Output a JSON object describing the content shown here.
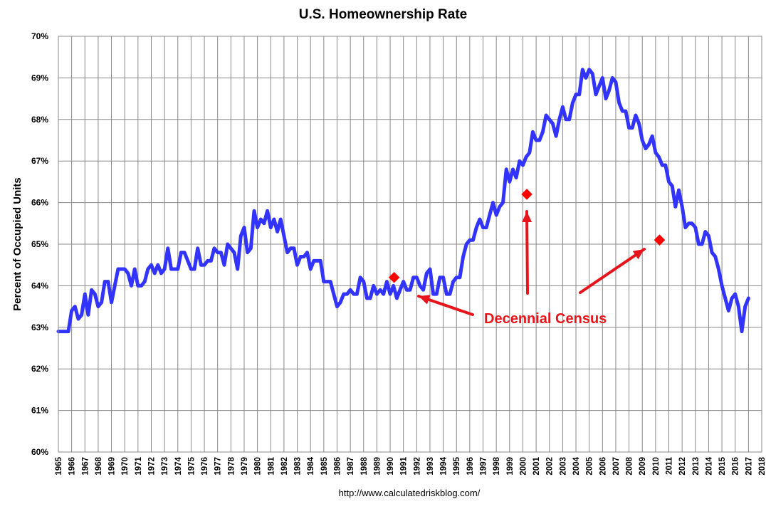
{
  "chart_data": {
    "type": "line",
    "title": "U.S. Homeownership Rate",
    "ylabel": "Percent of Occupied Units",
    "xlabel": "",
    "source": "http://www.calculatedriskblog.com/",
    "ylim": [
      60,
      70
    ],
    "xlim": [
      1965,
      2018
    ],
    "ytick_labels": [
      "60%",
      "61%",
      "62%",
      "63%",
      "64%",
      "65%",
      "66%",
      "67%",
      "68%",
      "69%",
      "70%"
    ],
    "xtick_labels": [
      "1965",
      "1966",
      "1967",
      "1968",
      "1969",
      "1970",
      "1971",
      "1972",
      "1973",
      "1974",
      "1975",
      "1976",
      "1977",
      "1978",
      "1979",
      "1980",
      "1981",
      "1982",
      "1983",
      "1984",
      "1985",
      "1986",
      "1987",
      "1988",
      "1989",
      "1990",
      "1991",
      "1992",
      "1993",
      "1994",
      "1995",
      "1996",
      "1997",
      "1998",
      "1999",
      "2000",
      "2001",
      "2002",
      "2003",
      "2004",
      "2005",
      "2006",
      "2007",
      "2008",
      "2009",
      "2010",
      "2011",
      "2012",
      "2013",
      "2014",
      "2015",
      "2016",
      "2017",
      "2018"
    ],
    "grid": true,
    "colors": {
      "series": "#3333ff",
      "census": "#ff0000",
      "annotation": "#e8141b",
      "grid": "#888888"
    },
    "series": [
      {
        "values": [
          [
            1965.0,
            62.9
          ],
          [
            1965.75,
            62.9
          ],
          [
            1966.0,
            63.4
          ],
          [
            1966.25,
            63.5
          ],
          [
            1966.5,
            63.2
          ],
          [
            1966.75,
            63.3
          ],
          [
            1967.0,
            63.8
          ],
          [
            1967.25,
            63.3
          ],
          [
            1967.5,
            63.9
          ],
          [
            1967.75,
            63.8
          ],
          [
            1968.0,
            63.5
          ],
          [
            1968.25,
            63.6
          ],
          [
            1968.5,
            64.1
          ],
          [
            1968.75,
            64.1
          ],
          [
            1969.0,
            63.6
          ],
          [
            1969.25,
            64.0
          ],
          [
            1969.5,
            64.4
          ],
          [
            1969.75,
            64.4
          ],
          [
            1970.0,
            64.4
          ],
          [
            1970.25,
            64.3
          ],
          [
            1970.5,
            64.0
          ],
          [
            1970.75,
            64.4
          ],
          [
            1971.0,
            64.0
          ],
          [
            1971.25,
            64.0
          ],
          [
            1971.5,
            64.1
          ],
          [
            1971.75,
            64.4
          ],
          [
            1972.0,
            64.5
          ],
          [
            1972.25,
            64.3
          ],
          [
            1972.5,
            64.5
          ],
          [
            1972.75,
            64.3
          ],
          [
            1973.0,
            64.4
          ],
          [
            1973.25,
            64.9
          ],
          [
            1973.5,
            64.4
          ],
          [
            1973.75,
            64.4
          ],
          [
            1974.0,
            64.4
          ],
          [
            1974.25,
            64.8
          ],
          [
            1974.5,
            64.8
          ],
          [
            1974.75,
            64.6
          ],
          [
            1975.0,
            64.4
          ],
          [
            1975.25,
            64.4
          ],
          [
            1975.5,
            64.9
          ],
          [
            1975.75,
            64.5
          ],
          [
            1976.0,
            64.5
          ],
          [
            1976.25,
            64.6
          ],
          [
            1976.5,
            64.6
          ],
          [
            1976.75,
            64.9
          ],
          [
            1977.0,
            64.8
          ],
          [
            1977.25,
            64.8
          ],
          [
            1977.5,
            64.5
          ],
          [
            1977.75,
            65.0
          ],
          [
            1978.0,
            64.9
          ],
          [
            1978.25,
            64.8
          ],
          [
            1978.5,
            64.4
          ],
          [
            1978.75,
            65.2
          ],
          [
            1979.0,
            65.4
          ],
          [
            1979.25,
            64.8
          ],
          [
            1979.5,
            64.9
          ],
          [
            1979.75,
            65.8
          ],
          [
            1980.0,
            65.4
          ],
          [
            1980.25,
            65.6
          ],
          [
            1980.5,
            65.5
          ],
          [
            1980.75,
            65.8
          ],
          [
            1981.0,
            65.4
          ],
          [
            1981.25,
            65.6
          ],
          [
            1981.5,
            65.3
          ],
          [
            1981.75,
            65.6
          ],
          [
            1982.0,
            65.2
          ],
          [
            1982.25,
            64.8
          ],
          [
            1982.5,
            64.9
          ],
          [
            1982.75,
            64.9
          ],
          [
            1983.0,
            64.5
          ],
          [
            1983.25,
            64.7
          ],
          [
            1983.5,
            64.7
          ],
          [
            1983.75,
            64.8
          ],
          [
            1984.0,
            64.4
          ],
          [
            1984.25,
            64.6
          ],
          [
            1984.5,
            64.6
          ],
          [
            1984.75,
            64.6
          ],
          [
            1985.0,
            64.1
          ],
          [
            1985.25,
            64.1
          ],
          [
            1985.5,
            64.1
          ],
          [
            1985.75,
            63.8
          ],
          [
            1986.0,
            63.5
          ],
          [
            1986.25,
            63.6
          ],
          [
            1986.5,
            63.8
          ],
          [
            1986.75,
            63.8
          ],
          [
            1987.0,
            63.9
          ],
          [
            1987.25,
            63.8
          ],
          [
            1987.5,
            63.8
          ],
          [
            1987.75,
            64.2
          ],
          [
            1988.0,
            64.1
          ],
          [
            1988.25,
            63.7
          ],
          [
            1988.5,
            63.7
          ],
          [
            1988.75,
            64.0
          ],
          [
            1989.0,
            63.8
          ],
          [
            1989.25,
            63.9
          ],
          [
            1989.5,
            63.8
          ],
          [
            1989.75,
            64.1
          ],
          [
            1990.0,
            63.8
          ],
          [
            1990.25,
            64.0
          ],
          [
            1990.5,
            63.7
          ],
          [
            1990.75,
            63.9
          ],
          [
            1991.0,
            64.1
          ],
          [
            1991.25,
            63.9
          ],
          [
            1991.5,
            63.9
          ],
          [
            1991.75,
            64.2
          ],
          [
            1992.0,
            64.2
          ],
          [
            1992.25,
            64.0
          ],
          [
            1992.5,
            63.9
          ],
          [
            1992.75,
            64.3
          ],
          [
            1993.0,
            64.4
          ],
          [
            1993.25,
            63.8
          ],
          [
            1993.5,
            63.8
          ],
          [
            1993.75,
            64.2
          ],
          [
            1994.0,
            64.2
          ],
          [
            1994.25,
            63.8
          ],
          [
            1994.5,
            63.8
          ],
          [
            1994.75,
            64.1
          ],
          [
            1995.0,
            64.2
          ],
          [
            1995.25,
            64.2
          ],
          [
            1995.5,
            64.7
          ],
          [
            1995.75,
            65.0
          ],
          [
            1996.0,
            65.1
          ],
          [
            1996.25,
            65.1
          ],
          [
            1996.5,
            65.4
          ],
          [
            1996.75,
            65.6
          ],
          [
            1997.0,
            65.4
          ],
          [
            1997.25,
            65.4
          ],
          [
            1997.5,
            65.7
          ],
          [
            1997.75,
            66.0
          ],
          [
            1998.0,
            65.7
          ],
          [
            1998.25,
            65.9
          ],
          [
            1998.5,
            66.0
          ],
          [
            1998.75,
            66.8
          ],
          [
            1999.0,
            66.5
          ],
          [
            1999.25,
            66.8
          ],
          [
            1999.5,
            66.6
          ],
          [
            1999.75,
            67.0
          ],
          [
            2000.0,
            66.9
          ],
          [
            2000.25,
            67.1
          ],
          [
            2000.5,
            67.2
          ],
          [
            2000.75,
            67.7
          ],
          [
            2001.0,
            67.5
          ],
          [
            2001.25,
            67.5
          ],
          [
            2001.5,
            67.7
          ],
          [
            2001.75,
            68.1
          ],
          [
            2002.0,
            68.0
          ],
          [
            2002.25,
            67.9
          ],
          [
            2002.5,
            67.6
          ],
          [
            2002.75,
            68.0
          ],
          [
            2003.0,
            68.3
          ],
          [
            2003.25,
            68.0
          ],
          [
            2003.5,
            68.0
          ],
          [
            2003.75,
            68.4
          ],
          [
            2004.0,
            68.6
          ],
          [
            2004.25,
            68.6
          ],
          [
            2004.5,
            69.2
          ],
          [
            2004.75,
            69.0
          ],
          [
            2005.0,
            69.2
          ],
          [
            2005.25,
            69.1
          ],
          [
            2005.5,
            68.6
          ],
          [
            2005.75,
            68.8
          ],
          [
            2006.0,
            69.0
          ],
          [
            2006.25,
            68.5
          ],
          [
            2006.5,
            68.7
          ],
          [
            2006.75,
            69.0
          ],
          [
            2007.0,
            68.9
          ],
          [
            2007.25,
            68.4
          ],
          [
            2007.5,
            68.2
          ],
          [
            2007.75,
            68.2
          ],
          [
            2008.0,
            67.8
          ],
          [
            2008.25,
            67.8
          ],
          [
            2008.5,
            68.1
          ],
          [
            2008.75,
            67.9
          ],
          [
            2009.0,
            67.5
          ],
          [
            2009.25,
            67.3
          ],
          [
            2009.5,
            67.4
          ],
          [
            2009.75,
            67.6
          ],
          [
            2010.0,
            67.2
          ],
          [
            2010.25,
            67.1
          ],
          [
            2010.5,
            66.9
          ],
          [
            2010.75,
            66.9
          ],
          [
            2011.0,
            66.5
          ],
          [
            2011.25,
            66.4
          ],
          [
            2011.5,
            65.9
          ],
          [
            2011.75,
            66.3
          ],
          [
            2012.0,
            65.9
          ],
          [
            2012.25,
            65.4
          ],
          [
            2012.5,
            65.5
          ],
          [
            2012.75,
            65.5
          ],
          [
            2013.0,
            65.4
          ],
          [
            2013.25,
            65.0
          ],
          [
            2013.5,
            65.0
          ],
          [
            2013.75,
            65.3
          ],
          [
            2014.0,
            65.2
          ],
          [
            2014.25,
            64.8
          ],
          [
            2014.5,
            64.7
          ],
          [
            2014.75,
            64.4
          ],
          [
            2015.0,
            64.0
          ],
          [
            2015.25,
            63.7
          ],
          [
            2015.5,
            63.4
          ],
          [
            2015.75,
            63.7
          ],
          [
            2016.0,
            63.8
          ],
          [
            2016.25,
            63.5
          ],
          [
            2016.5,
            62.9
          ],
          [
            2016.75,
            63.5
          ],
          [
            2017.0,
            63.7
          ]
        ]
      }
    ],
    "census_points": [
      [
        1990.3,
        64.2
      ],
      [
        2000.3,
        66.2
      ],
      [
        2010.3,
        65.1
      ]
    ],
    "annotation": {
      "text": "Decennial Census"
    }
  }
}
